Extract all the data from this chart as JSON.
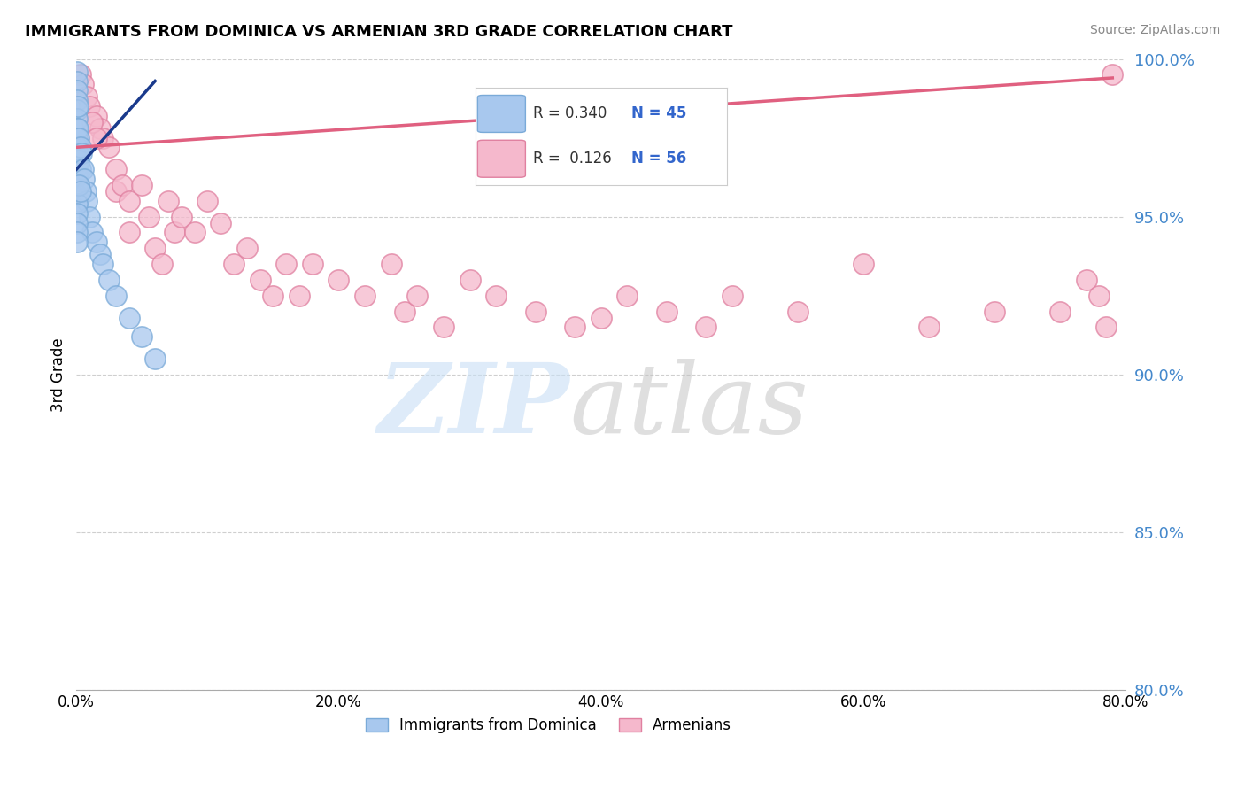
{
  "title": "IMMIGRANTS FROM DOMINICA VS ARMENIAN 3RD GRADE CORRELATION CHART",
  "source": "Source: ZipAtlas.com",
  "ylabel": "3rd Grade",
  "xlim": [
    0.0,
    80.0
  ],
  "ylim": [
    80.0,
    100.0
  ],
  "yticks": [
    80.0,
    85.0,
    90.0,
    95.0,
    100.0
  ],
  "xticks": [
    0.0,
    20.0,
    40.0,
    60.0,
    80.0
  ],
  "legend_label1": "Immigrants from Dominica",
  "legend_label2": "Armenians",
  "blue_color": "#a8c8ee",
  "blue_edge": "#7aaad8",
  "blue_line_color": "#1a3a8c",
  "pink_color": "#f5b8cc",
  "pink_edge": "#e080a0",
  "pink_line_color": "#e06080",
  "yticklabel_color": "#4488cc",
  "watermark_zip_color": "#c8dff5",
  "watermark_atlas_color": "#c0c0c0",
  "blue_x": [
    0.05,
    0.05,
    0.05,
    0.05,
    0.05,
    0.05,
    0.05,
    0.05,
    0.05,
    0.05,
    0.05,
    0.05,
    0.05,
    0.05,
    0.1,
    0.1,
    0.1,
    0.1,
    0.1,
    0.2,
    0.2,
    0.3,
    0.3,
    0.4,
    0.5,
    0.6,
    0.7,
    0.8,
    1.0,
    1.2,
    1.5,
    1.8,
    2.0,
    2.5,
    3.0,
    4.0,
    5.0,
    6.0,
    0.05,
    0.05,
    0.05,
    0.2,
    0.3,
    0.05,
    0.05
  ],
  "blue_y": [
    99.6,
    99.3,
    99.0,
    98.7,
    98.4,
    98.1,
    97.8,
    97.5,
    97.2,
    96.9,
    96.6,
    96.3,
    96.0,
    95.7,
    98.5,
    97.8,
    97.0,
    96.3,
    95.5,
    97.5,
    96.8,
    97.2,
    96.5,
    97.0,
    96.5,
    96.2,
    95.8,
    95.5,
    95.0,
    94.5,
    94.2,
    93.8,
    93.5,
    93.0,
    92.5,
    91.8,
    91.2,
    90.5,
    95.4,
    95.1,
    94.8,
    96.0,
    95.8,
    94.5,
    94.2
  ],
  "pink_x": [
    0.3,
    0.5,
    0.8,
    1.0,
    1.5,
    1.8,
    2.0,
    2.5,
    3.0,
    3.0,
    3.5,
    4.0,
    4.0,
    5.0,
    5.5,
    6.0,
    7.0,
    7.5,
    8.0,
    9.0,
    10.0,
    11.0,
    12.0,
    13.0,
    14.0,
    15.0,
    16.0,
    17.0,
    18.0,
    20.0,
    22.0,
    24.0,
    25.0,
    26.0,
    28.0,
    30.0,
    32.0,
    35.0,
    38.0,
    40.0,
    42.0,
    45.0,
    48.0,
    50.0,
    55.0,
    60.0,
    65.0,
    70.0,
    75.0,
    77.0,
    78.0,
    78.5,
    79.0,
    1.2,
    1.5,
    6.5
  ],
  "pink_y": [
    99.5,
    99.2,
    98.8,
    98.5,
    98.2,
    97.8,
    97.5,
    97.2,
    96.5,
    95.8,
    96.0,
    95.5,
    94.5,
    96.0,
    95.0,
    94.0,
    95.5,
    94.5,
    95.0,
    94.5,
    95.5,
    94.8,
    93.5,
    94.0,
    93.0,
    92.5,
    93.5,
    92.5,
    93.5,
    93.0,
    92.5,
    93.5,
    92.0,
    92.5,
    91.5,
    93.0,
    92.5,
    92.0,
    91.5,
    91.8,
    92.5,
    92.0,
    91.5,
    92.5,
    92.0,
    93.5,
    91.5,
    92.0,
    92.0,
    93.0,
    92.5,
    91.5,
    99.5,
    98.0,
    97.5,
    93.5
  ],
  "blue_trend_x0": 0.0,
  "blue_trend_x1": 6.0,
  "blue_trend_y0": 96.5,
  "blue_trend_y1": 99.3,
  "pink_trend_x0": 0.0,
  "pink_trend_x1": 79.0,
  "pink_trend_y0": 97.2,
  "pink_trend_y1": 99.4
}
